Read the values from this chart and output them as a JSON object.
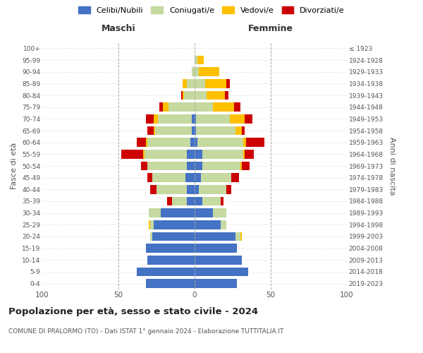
{
  "age_groups": [
    "0-4",
    "5-9",
    "10-14",
    "15-19",
    "20-24",
    "25-29",
    "30-34",
    "35-39",
    "40-44",
    "45-49",
    "50-54",
    "55-59",
    "60-64",
    "65-69",
    "70-74",
    "75-79",
    "80-84",
    "85-89",
    "90-94",
    "95-99",
    "100+"
  ],
  "birth_years": [
    "2019-2023",
    "2014-2018",
    "2009-2013",
    "2004-2008",
    "1999-2003",
    "1994-1998",
    "1989-1993",
    "1984-1988",
    "1979-1983",
    "1974-1978",
    "1969-1973",
    "1964-1968",
    "1959-1963",
    "1954-1958",
    "1949-1953",
    "1944-1948",
    "1939-1943",
    "1934-1938",
    "1929-1933",
    "1924-1928",
    "≤ 1923"
  ],
  "maschi": {
    "celibi": [
      32,
      38,
      31,
      32,
      28,
      27,
      22,
      5,
      5,
      6,
      5,
      5,
      3,
      2,
      2,
      0,
      0,
      0,
      0,
      0,
      0
    ],
    "coniugati": [
      0,
      0,
      0,
      0,
      1,
      2,
      8,
      10,
      20,
      22,
      26,
      28,
      28,
      24,
      22,
      17,
      7,
      5,
      2,
      0,
      0
    ],
    "vedovi": [
      0,
      0,
      0,
      0,
      0,
      1,
      0,
      0,
      0,
      0,
      0,
      1,
      1,
      1,
      3,
      4,
      1,
      3,
      0,
      0,
      0
    ],
    "divorziati": [
      0,
      0,
      0,
      0,
      0,
      0,
      0,
      3,
      4,
      3,
      4,
      14,
      6,
      4,
      5,
      2,
      1,
      0,
      0,
      0,
      0
    ]
  },
  "femmine": {
    "nubili": [
      28,
      35,
      31,
      28,
      27,
      17,
      12,
      5,
      3,
      4,
      5,
      5,
      2,
      1,
      1,
      0,
      0,
      0,
      0,
      0,
      0
    ],
    "coniugate": [
      0,
      0,
      0,
      0,
      3,
      4,
      9,
      12,
      18,
      20,
      25,
      27,
      30,
      26,
      22,
      12,
      8,
      7,
      3,
      2,
      0
    ],
    "vedove": [
      0,
      0,
      0,
      0,
      1,
      0,
      0,
      0,
      0,
      0,
      1,
      1,
      2,
      4,
      10,
      14,
      12,
      14,
      13,
      4,
      0
    ],
    "divorziate": [
      0,
      0,
      0,
      0,
      0,
      0,
      0,
      2,
      3,
      5,
      5,
      6,
      12,
      2,
      5,
      4,
      2,
      2,
      0,
      0,
      0
    ]
  },
  "colors": {
    "celibi": "#4472c4",
    "coniugati": "#c5d9a0",
    "vedovi": "#ffc000",
    "divorziati": "#cc0000"
  },
  "title": "Popolazione per età, sesso e stato civile - 2024",
  "subtitle": "COMUNE DI PRALORMO (TO) - Dati ISTAT 1° gennaio 2024 - Elaborazione TUTTITALIA.IT",
  "xlabel_left": "Maschi",
  "xlabel_right": "Femmine",
  "ylabel_left": "Fasce di età",
  "ylabel_right": "Anni di nascita",
  "xlim": 100,
  "legend_labels": [
    "Celibi/Nubili",
    "Coniugati/e",
    "Vedovi/e",
    "Divorziati/e"
  ],
  "background_color": "#ffffff"
}
